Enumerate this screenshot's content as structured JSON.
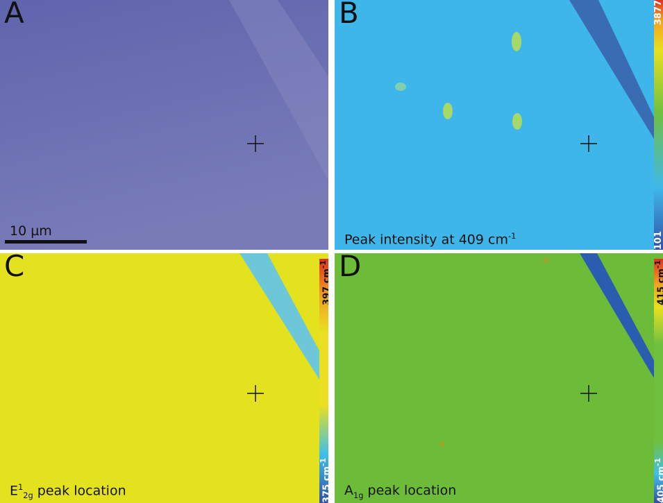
{
  "panels": [
    {
      "letter": "A",
      "scale_bar": "10 µm"
    },
    {
      "letter": "B",
      "caption": {
        "text": "Peak intensity at 409 cm",
        "sup": "-1"
      },
      "colorbar": {
        "max": "3877",
        "min": "101"
      }
    },
    {
      "letter": "C",
      "caption": {
        "base": "E",
        "sup": "1",
        "sub": "2g",
        "text": " peak location"
      },
      "colorbar": {
        "max": {
          "text": "397 cm",
          "sup": "-1"
        },
        "min": {
          "text": "375 cm",
          "sup": "-1"
        }
      }
    },
    {
      "letter": "D",
      "caption": {
        "base": "A",
        "sub": "1g",
        "text": " peak location"
      },
      "colorbar": {
        "max": {
          "text": "415 cm",
          "sup": "-1"
        },
        "min": {
          "text": "405 cm",
          "sup": "-1"
        }
      }
    }
  ]
}
